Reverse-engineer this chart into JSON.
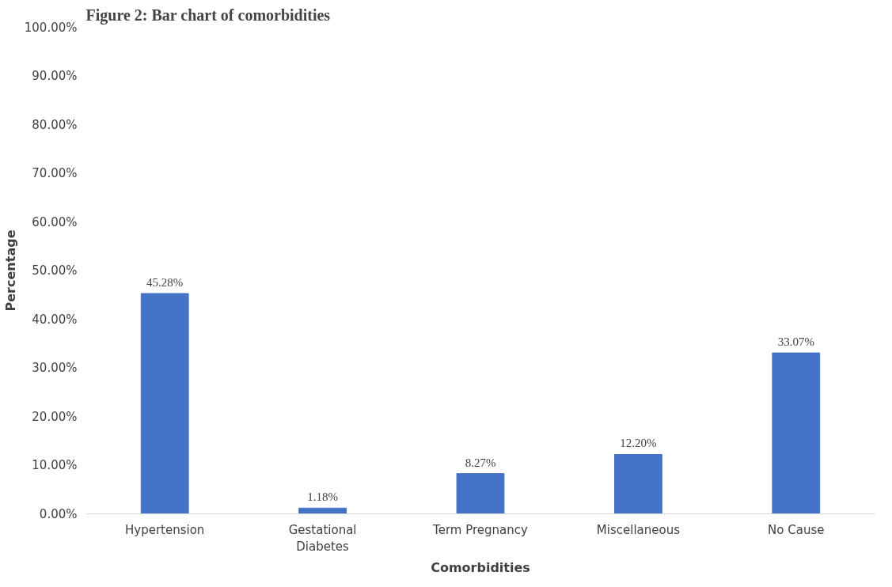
{
  "chart_data": {
    "type": "bar",
    "title": "Figure 2: Bar chart of comorbidities",
    "xlabel": "Comorbidities",
    "ylabel": "Percentage",
    "categories": [
      "Hypertension",
      "Gestational Diabetes",
      "Term Pregnancy",
      "Miscellaneous",
      "No Cause"
    ],
    "values": [
      45.28,
      1.18,
      8.27,
      12.2,
      33.07
    ],
    "value_labels": [
      "45.28%",
      "1.18%",
      "8.27%",
      "12.20%",
      "33.07%"
    ],
    "color": "#4472c4",
    "ylim": [
      0,
      100
    ],
    "yticks": [
      {
        "value": 0,
        "label": "0.00%"
      },
      {
        "value": 10,
        "label": "10.00%"
      },
      {
        "value": 20,
        "label": "20.00%"
      },
      {
        "value": 30,
        "label": "30.00%"
      },
      {
        "value": 40,
        "label": "40.00%"
      },
      {
        "value": 50,
        "label": "50.00%"
      },
      {
        "value": 60,
        "label": "60.00%"
      },
      {
        "value": 70,
        "label": "70.00%"
      },
      {
        "value": 80,
        "label": "80.00%"
      },
      {
        "value": 90,
        "label": "90.00%"
      },
      {
        "value": 100,
        "label": "100.00%"
      }
    ],
    "grid": false
  }
}
